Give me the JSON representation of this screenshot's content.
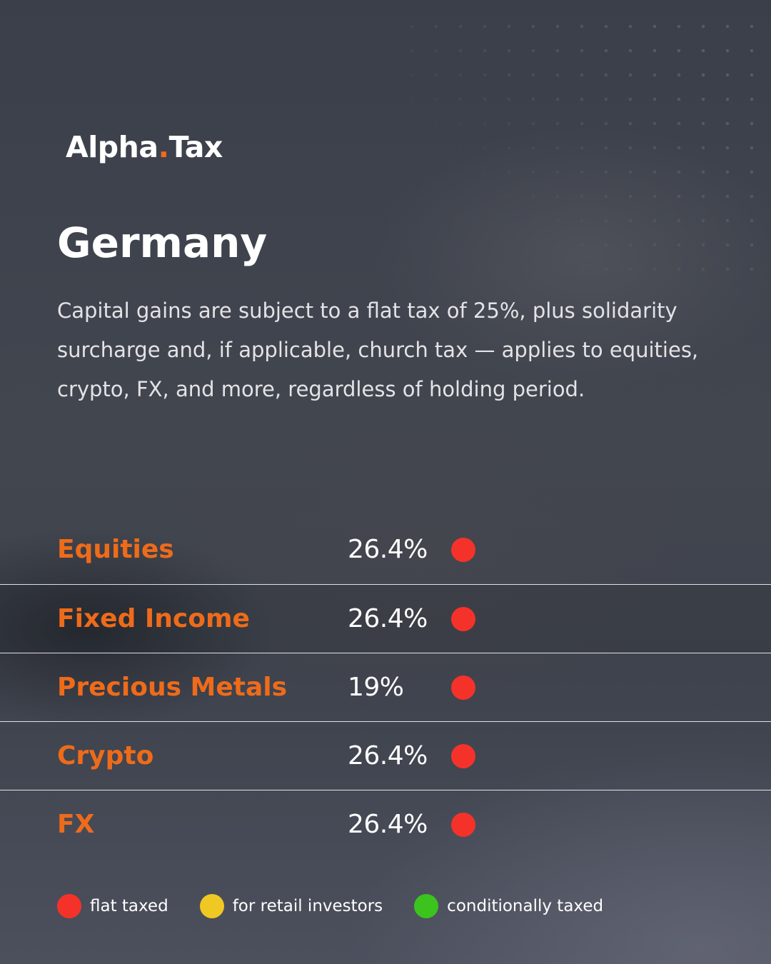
{
  "brand": {
    "name_part1": "Alpha",
    "name_dot": ".",
    "name_part2": "Tax"
  },
  "title": "Germany",
  "description": "Capital gains are subject to a flat tax of 25%, plus solidarity surcharge and, if applicable, church tax — applies to equities, crypto, FX, and more, regardless of holding period.",
  "rows": [
    {
      "label": "Equities",
      "rate": "26.4%",
      "status": "flat taxed"
    },
    {
      "label": "Fixed Income",
      "rate": "26.4%",
      "status": "flat taxed"
    },
    {
      "label": "Precious Metals",
      "rate": "19%",
      "status": "flat taxed"
    },
    {
      "label": "Crypto",
      "rate": "26.4%",
      "status": "flat taxed"
    },
    {
      "label": "FX",
      "rate": "26.4%",
      "status": "flat taxed"
    }
  ],
  "legend": [
    {
      "label": "flat taxed",
      "color": "#f5322a"
    },
    {
      "label": "for retail investors",
      "color": "#f0c824"
    },
    {
      "label": "conditionally taxed",
      "color": "#3cc31e"
    }
  ],
  "colors": {
    "accent": "#ee6b1a",
    "status_flat": "#f5322a"
  }
}
